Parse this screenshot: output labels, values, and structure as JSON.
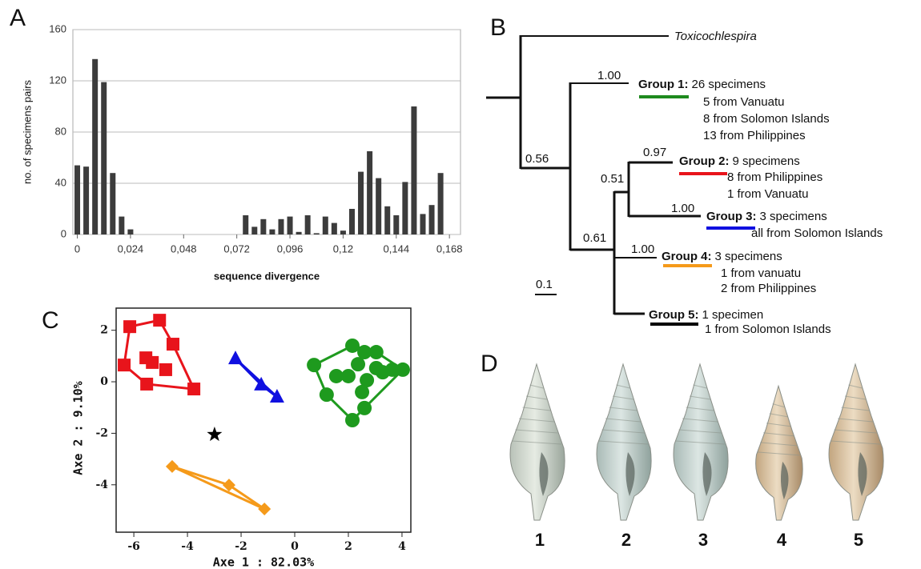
{
  "panels": [
    "A",
    "B",
    "C",
    "D"
  ],
  "chart_data": [
    {
      "type": "bar",
      "x_label": "sequence divergence",
      "y_label": "no. of specimens pairs",
      "color": "#3c3c3c",
      "grid": true,
      "x": [
        0,
        0.004,
        0.008,
        0.012,
        0.016,
        0.02,
        0.024,
        0.076,
        0.08,
        0.084,
        0.088,
        0.092,
        0.096,
        0.1,
        0.104,
        0.108,
        0.112,
        0.116,
        0.12,
        0.124,
        0.128,
        0.132,
        0.136,
        0.14,
        0.144,
        0.148,
        0.152,
        0.156,
        0.16,
        0.164
      ],
      "values": [
        54,
        53,
        137,
        119,
        48,
        14,
        4,
        15,
        6,
        12,
        4,
        12,
        14,
        2,
        15,
        1,
        14,
        9,
        3,
        20,
        49,
        65,
        44,
        22,
        15,
        41,
        100,
        16,
        23,
        48
      ],
      "xlim": [
        -0.002,
        0.173
      ],
      "ylim": [
        0,
        160
      ],
      "xticks": [
        0,
        {
          "value": 0.024,
          "label": "0,024"
        },
        {
          "value": 0.048,
          "label": "0,048"
        },
        {
          "value": 0.072,
          "label": "0,072"
        },
        {
          "value": 0.096,
          "label": "0,096"
        },
        {
          "value": 0.12,
          "label": "0,12"
        },
        {
          "value": 0.144,
          "label": "0,144"
        },
        {
          "value": 0.168,
          "label": "0,168"
        }
      ],
      "yticks": [
        0,
        40,
        80,
        120,
        160
      ]
    },
    {
      "type": "scatter",
      "x_label": "Axe 1 : 82.03%",
      "y_label": "Axe 2 : 9.10%",
      "xlim": [
        -6.66,
        4.33
      ],
      "ylim": [
        -5.84,
        2.86
      ],
      "xticks": [
        -6,
        -4,
        -2,
        0,
        2,
        4
      ],
      "yticks": [
        -4,
        -2,
        0,
        2
      ],
      "series": [
        {
          "color": "#e8141b",
          "marker": "square",
          "x": [
            -6.15,
            -5.04,
            -4.54,
            -3.76,
            -5.52,
            -6.36,
            -5.55,
            -5.31,
            -4.81
          ],
          "y": [
            2.14,
            2.39,
            1.46,
            -0.28,
            -0.09,
            0.65,
            0.93,
            0.75,
            0.47
          ]
        },
        {
          "color": "#1010e0",
          "marker": "triangle",
          "x": [
            -2.21,
            -1.25,
            -0.66
          ],
          "y": [
            0.9,
            -0.12,
            -0.59
          ]
        },
        {
          "color": "#1e9a1e",
          "marker": "circle",
          "x": [
            0.72,
            2.15,
            3.04,
            4.03,
            3.28,
            2.69,
            2.6,
            2.15,
            1.19,
            1.55,
            2.36,
            3.04,
            3.64,
            2.51,
            2.0,
            2.6
          ],
          "y": [
            0.65,
            1.4,
            1.15,
            0.47,
            0.37,
            0.06,
            -1.02,
            -1.49,
            -0.5,
            0.22,
            0.68,
            0.53,
            0.47,
            -0.4,
            0.22,
            1.15
          ]
        },
        {
          "color": "#f59a1a",
          "marker": "diamond",
          "x": [
            -4.57,
            -2.45,
            -1.13
          ],
          "y": [
            -3.29,
            -4.01,
            -4.94
          ]
        },
        {
          "color": "#000000",
          "marker": "star",
          "x": [
            -2.99
          ],
          "y": [
            -2.05
          ]
        }
      ]
    }
  ],
  "tree": {
    "outgroup": "Toxicochlespira",
    "scale": "0.1",
    "supports": [
      "1.00",
      "0.56",
      "0.97",
      "0.51",
      "1.00",
      "0.61",
      "1.00"
    ],
    "groups": [
      {
        "label": "Group 1:",
        "summary": "26 specimens",
        "details": [
          "5 from Vanuatu",
          "8 from Solomon Islands",
          "13 from Philippines"
        ]
      },
      {
        "label": "Group 2:",
        "summary": "9 specimens",
        "details": [
          "8 from Philippines",
          "1 from Vanuatu"
        ]
      },
      {
        "label": "Group 3:",
        "summary": "3 specimens",
        "details": [
          "all from Solomon Islands"
        ]
      },
      {
        "label": "Group 4:",
        "summary": "3 specimens",
        "details": [
          "1 from vanuatu",
          "2 from Philippines"
        ]
      },
      {
        "label": "Group 5:",
        "summary": "1 specimen",
        "details": [
          "1 from Solomon Islands"
        ]
      }
    ]
  },
  "shells": {
    "labels": [
      "1",
      "2",
      "3",
      "4",
      "5"
    ]
  }
}
